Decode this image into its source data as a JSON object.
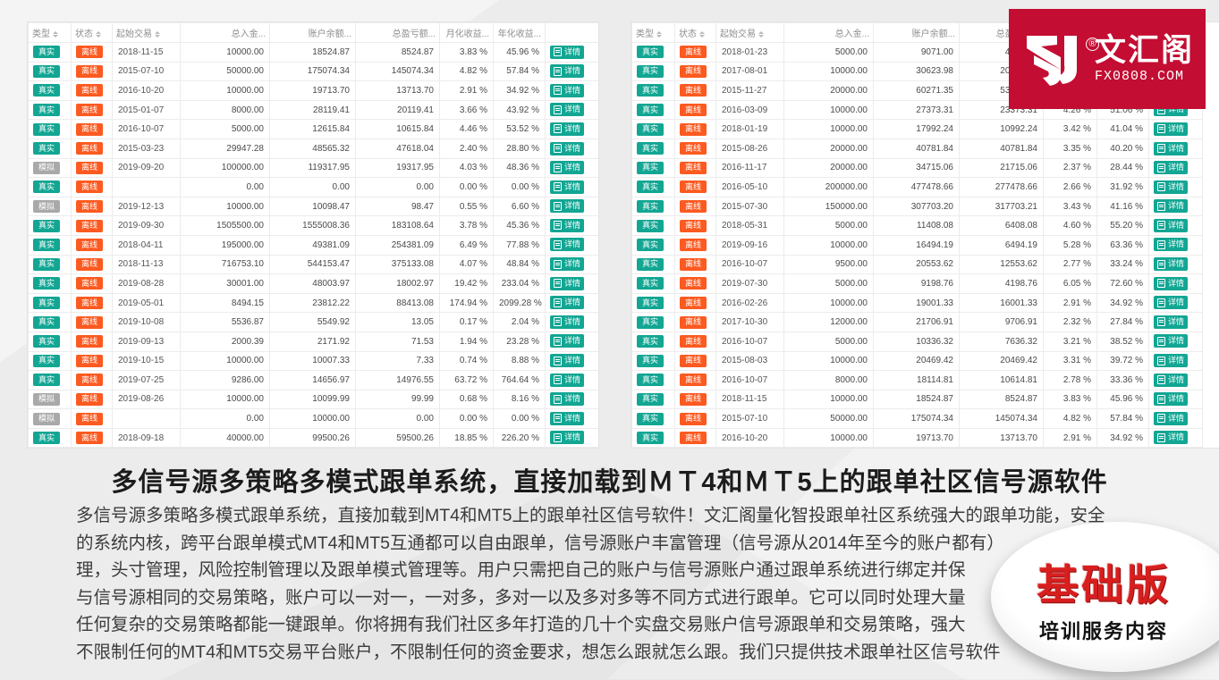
{
  "colors": {
    "page-bg": "#ECECEC",
    "real": "#12A693",
    "demo": "#A9A9A9",
    "offline": "#FC5A20",
    "logo-bg": "#C30D32",
    "edition-red": "#D81E1E"
  },
  "table": {
    "header_labels": [
      "类型",
      "状态",
      "起始交易",
      "总入金...",
      "账户余额...",
      "总盈亏额...",
      "月化收益...",
      "年化收益...",
      ""
    ],
    "sortable_columns": [
      0,
      1,
      2
    ],
    "numeric_columns": [
      3,
      4,
      5,
      6,
      7
    ],
    "detail_button_label": "详情",
    "badge_classes": {
      "真实": "real",
      "模拟": "demo",
      "离线": "offline"
    }
  },
  "tables": {
    "left": {
      "rows": [
        [
          "真实",
          "离线",
          "2018-11-15",
          "10000.00",
          "18524.87",
          "8524.87",
          "3.83 %",
          "45.96 %"
        ],
        [
          "真实",
          "离线",
          "2015-07-10",
          "50000.00",
          "175074.34",
          "145074.34",
          "4.82 %",
          "57.84 %"
        ],
        [
          "真实",
          "离线",
          "2016-10-20",
          "10000.00",
          "19713.70",
          "13713.70",
          "2.91 %",
          "34.92 %"
        ],
        [
          "真实",
          "离线",
          "2015-01-07",
          "8000.00",
          "28119.41",
          "20119.41",
          "3.66 %",
          "43.92 %"
        ],
        [
          "真实",
          "离线",
          "2016-10-07",
          "5000.00",
          "12615.84",
          "10615.84",
          "4.46 %",
          "53.52 %"
        ],
        [
          "真实",
          "离线",
          "2015-03-23",
          "29947.28",
          "48565.32",
          "47618.04",
          "2.40 %",
          "28.80 %"
        ],
        [
          "模拟",
          "离线",
          "2019-09-20",
          "100000.00",
          "119317.95",
          "19317.95",
          "4.03 %",
          "48.36 %"
        ],
        [
          "真实",
          "离线",
          "",
          "0.00",
          "0.00",
          "0.00",
          "0.00 %",
          "0.00 %"
        ],
        [
          "模拟",
          "离线",
          "2019-12-13",
          "10000.00",
          "10098.47",
          "98.47",
          "0.55 %",
          "6.60 %"
        ],
        [
          "真实",
          "离线",
          "2019-09-30",
          "1505500.00",
          "1555008.36",
          "183108.64",
          "3.78 %",
          "45.36 %"
        ],
        [
          "真实",
          "离线",
          "2018-04-11",
          "195000.00",
          "49381.09",
          "254381.09",
          "6.49 %",
          "77.88 %"
        ],
        [
          "真实",
          "离线",
          "2018-11-13",
          "716753.10",
          "544153.47",
          "375133.08",
          "4.07 %",
          "48.84 %"
        ],
        [
          "真实",
          "离线",
          "2019-08-28",
          "30001.00",
          "48003.97",
          "18002.97",
          "19.42 %",
          "233.04 %"
        ],
        [
          "真实",
          "离线",
          "2019-05-01",
          "8494.15",
          "23812.22",
          "88413.08",
          "174.94 %",
          "2099.28 %"
        ],
        [
          "真实",
          "离线",
          "2019-10-08",
          "5536.87",
          "5549.92",
          "13.05",
          "0.17 %",
          "2.04 %"
        ],
        [
          "真实",
          "离线",
          "2019-09-13",
          "2000.39",
          "2171.92",
          "71.53",
          "1.94 %",
          "23.28 %"
        ],
        [
          "真实",
          "离线",
          "2019-10-15",
          "10000.00",
          "10007.33",
          "7.33",
          "0.74 %",
          "8.88 %"
        ],
        [
          "真实",
          "离线",
          "2019-07-25",
          "9286.00",
          "14656.97",
          "14976.55",
          "63.72 %",
          "764.64 %"
        ],
        [
          "模拟",
          "离线",
          "2019-08-26",
          "10000.00",
          "10099.99",
          "99.99",
          "0.68 %",
          "8.16 %"
        ],
        [
          "模拟",
          "离线",
          "",
          "0.00",
          "10000.00",
          "0.00",
          "0.00 %",
          "0.00 %"
        ],
        [
          "真实",
          "离线",
          "2018-09-18",
          "40000.00",
          "99500.26",
          "59500.26",
          "18.85 %",
          "226.20 %"
        ]
      ]
    },
    "right": {
      "rows": [
        [
          "真实",
          "离线",
          "2018-01-23",
          "5000.00",
          "9071.00",
          "4471.00",
          "3.55 %",
          "42.60 %"
        ],
        [
          "真实",
          "离线",
          "2017-08-01",
          "10000.00",
          "30623.98",
          "20623.98",
          "3.44 %",
          "41.28 %"
        ],
        [
          "真实",
          "离线",
          "2015-11-27",
          "20000.00",
          "60271.35",
          "53271.35",
          "2.86 %",
          "34.32 %"
        ],
        [
          "真实",
          "离线",
          "2016-03-09",
          "10000.00",
          "27373.31",
          "23373.31",
          "4.26 %",
          "51.06 %"
        ],
        [
          "真实",
          "离线",
          "2018-01-19",
          "10000.00",
          "17992.24",
          "10992.24",
          "3.42 %",
          "41.04 %"
        ],
        [
          "真实",
          "离线",
          "2015-08-26",
          "20000.00",
          "40781.84",
          "40781.84",
          "3.35 %",
          "40.20 %"
        ],
        [
          "真实",
          "离线",
          "2016-11-17",
          "20000.00",
          "34715.06",
          "21715.06",
          "2.37 %",
          "28.44 %"
        ],
        [
          "真实",
          "离线",
          "2016-05-10",
          "200000.00",
          "477478.66",
          "277478.66",
          "2.66 %",
          "31.92 %"
        ],
        [
          "真实",
          "离线",
          "2015-07-30",
          "150000.00",
          "307703.20",
          "317703.21",
          "3.43 %",
          "41.16 %"
        ],
        [
          "真实",
          "离线",
          "2018-05-31",
          "5000.00",
          "11408.08",
          "6408.08",
          "4.60 %",
          "55.20 %"
        ],
        [
          "真实",
          "离线",
          "2019-09-16",
          "10000.00",
          "16494.19",
          "6494.19",
          "5.28 %",
          "63.36 %"
        ],
        [
          "真实",
          "离线",
          "2016-10-07",
          "9500.00",
          "20553.62",
          "12553.62",
          "2.77 %",
          "33.24 %"
        ],
        [
          "真实",
          "离线",
          "2019-07-30",
          "5000.00",
          "9198.76",
          "4198.76",
          "6.05 %",
          "72.60 %"
        ],
        [
          "真实",
          "离线",
          "2016-02-26",
          "10000.00",
          "19001.33",
          "16001.33",
          "2.91 %",
          "34.92 %"
        ],
        [
          "真实",
          "离线",
          "2017-10-30",
          "12000.00",
          "21706.91",
          "9706.91",
          "2.32 %",
          "27.84 %"
        ],
        [
          "真实",
          "离线",
          "2016-10-07",
          "5000.00",
          "10336.32",
          "7636.32",
          "3.21 %",
          "38.52 %"
        ],
        [
          "真实",
          "离线",
          "2015-08-03",
          "10000.00",
          "20469.42",
          "20469.42",
          "3.31 %",
          "39.72 %"
        ],
        [
          "真实",
          "离线",
          "2016-10-07",
          "8000.00",
          "18114.81",
          "10614.81",
          "2.78 %",
          "33.36 %"
        ],
        [
          "真实",
          "离线",
          "2018-11-15",
          "10000.00",
          "18524.87",
          "8524.87",
          "3.83 %",
          "45.96 %"
        ],
        [
          "真实",
          "离线",
          "2015-07-10",
          "50000.00",
          "175074.34",
          "145074.34",
          "4.82 %",
          "57.84 %"
        ],
        [
          "真实",
          "离线",
          "2016-10-20",
          "10000.00",
          "19713.70",
          "13713.70",
          "2.91 %",
          "34.92 %"
        ]
      ]
    }
  },
  "logo": {
    "brand": "文汇阁",
    "domain": "FX0808.COM",
    "registered": "®"
  },
  "headline": "多信号源多策略多模式跟单系统，直接加载到ＭＴ4和ＭＴ5上的跟单社区信号源软件",
  "paragraph_lines": [
    "多信号源多策略多模式跟单系统，直接加载到MT4和MT5上的跟单社区信号软件！文汇阁量化智投跟单社区系统强大的跟单功能，安全",
    "的系统内核，跨平台跟单模式MT4和MT5互通都可以自由跟单，信号源账户丰富管理（信号源从2014年至今的账户都有）",
    "理，头寸管理，风险控制管理以及跟单模式管理等。用户只需把自己的账户与信号源账户通过跟单系统进行绑定并保",
    "与信号源相同的交易策略，账户可以一对一，一对多，多对一以及多对多等不同方式进行跟单。它可以同时处理大量",
    "任何复杂的交易策略都能一键跟单。你将拥有我们社区多年打造的几十个实盘交易账户信号源跟单和交易策略，强大",
    "不限制任何的MT4和MT5交易平台账户，不限制任何的资金要求，想怎么跟就怎么跟。我们只提供技术跟单社区信号软件"
  ],
  "edition_badge": {
    "title": "基础版",
    "subtitle": "培训服务内容"
  }
}
